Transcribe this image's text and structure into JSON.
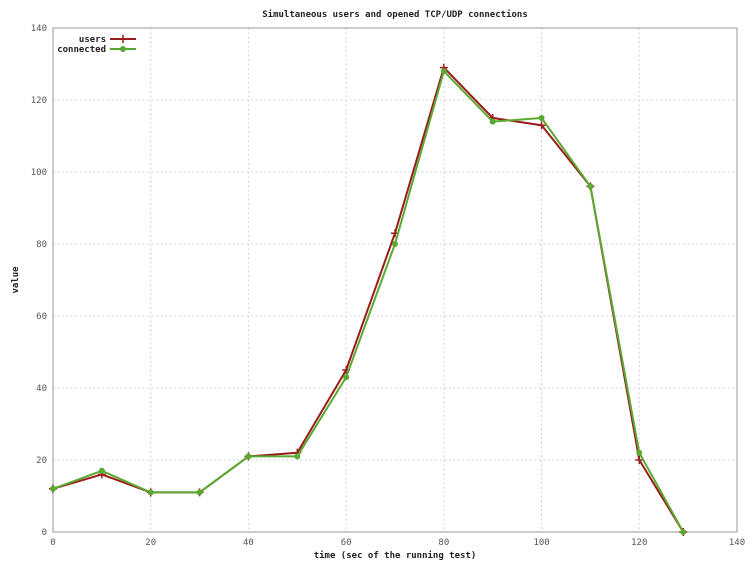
{
  "chart_data": {
    "type": "line",
    "title": "Simultaneous users and opened TCP/UDP connections",
    "xlabel": "time (sec of the running test)",
    "ylabel": "value",
    "xlim": [
      0,
      140
    ],
    "ylim": [
      0,
      140
    ],
    "xticks": [
      0,
      20,
      40,
      60,
      80,
      100,
      120,
      140
    ],
    "yticks": [
      0,
      20,
      40,
      60,
      80,
      100,
      120,
      140
    ],
    "grid": true,
    "legend_position": "top-left",
    "x": [
      0,
      10,
      20,
      30,
      40,
      50,
      60,
      70,
      80,
      90,
      100,
      110,
      120,
      129
    ],
    "series": [
      {
        "name": "users",
        "color": "#9b1c1c",
        "marker": "plus",
        "values": [
          12,
          16,
          11,
          11,
          21,
          22,
          45,
          83,
          129,
          115,
          113,
          96,
          20,
          0
        ]
      },
      {
        "name": "connected",
        "color": "#5aaa32",
        "marker": "circle",
        "values": [
          12,
          17,
          11,
          11,
          21,
          21,
          43,
          80,
          128,
          114,
          115,
          96,
          22,
          0
        ]
      }
    ]
  }
}
